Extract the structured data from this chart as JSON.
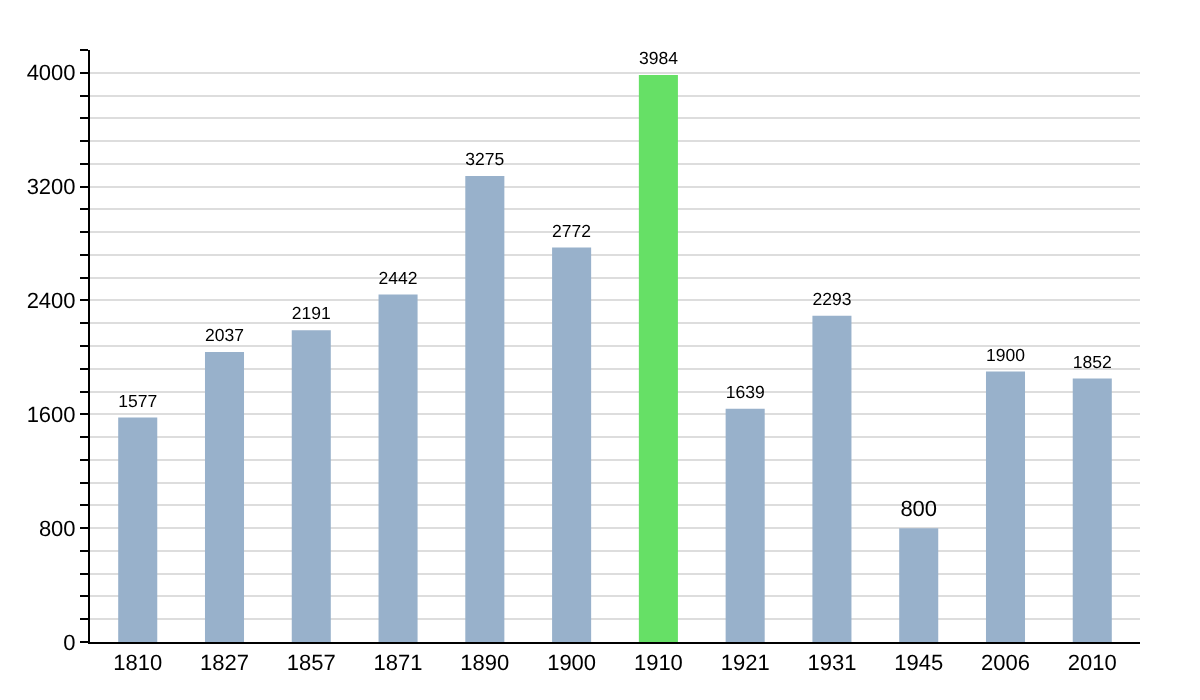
{
  "chart_data": {
    "type": "bar",
    "categories": [
      "1810",
      "1827",
      "1857",
      "1871",
      "1890",
      "1900",
      "1910",
      "1921",
      "1931",
      "1945",
      "2006",
      "2010"
    ],
    "values": [
      1577,
      2037,
      2191,
      2442,
      3275,
      2772,
      3984,
      1639,
      2293,
      800,
      1900,
      1852
    ],
    "colors": [
      "#98b1cb",
      "#98b1cb",
      "#98b1cb",
      "#98b1cb",
      "#98b1cb",
      "#98b1cb",
      "#66e066",
      "#98b1cb",
      "#98b1cb",
      "#98b1cb",
      "#98b1cb",
      "#98b1cb"
    ],
    "ylim": [
      0,
      4160
    ],
    "yticks": [
      0,
      {
        "value": 160,
        "label": null
      },
      {
        "value": 320,
        "label": null
      },
      {
        "value": 480,
        "label": null
      },
      {
        "value": 640,
        "label": null
      },
      800,
      {
        "value": 960,
        "label": null
      },
      {
        "value": 1120,
        "label": null
      },
      {
        "value": 1280,
        "label": null
      },
      {
        "value": 1440,
        "label": null
      },
      1600,
      {
        "value": 1760,
        "label": null
      },
      {
        "value": 1920,
        "label": null
      },
      {
        "value": 2080,
        "label": null
      },
      {
        "value": 2240,
        "label": null
      },
      2400,
      {
        "value": 2560,
        "label": null
      },
      {
        "value": 2720,
        "label": null
      },
      {
        "value": 2880,
        "label": null
      },
      {
        "value": 3040,
        "label": null
      },
      3200,
      {
        "value": 3360,
        "label": null
      },
      {
        "value": 3520,
        "label": null
      },
      {
        "value": 3680,
        "label": null
      },
      {
        "value": 3840,
        "label": null
      },
      4000,
      {
        "value": 4160,
        "label": null
      }
    ],
    "grid": "y",
    "data_labels": true
  }
}
